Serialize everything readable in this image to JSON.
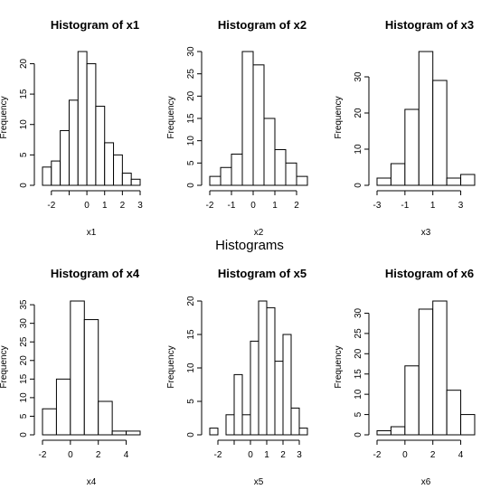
{
  "suptitle": "Histograms",
  "colors": {
    "background": "#ffffff",
    "bar_fill": "#ffffff",
    "bar_stroke": "#000000"
  },
  "chart_data": [
    {
      "type": "bar",
      "title": "Histogram of x1",
      "xlabel": "x1",
      "ylabel": "Frequency",
      "bin_edges": [
        -2.5,
        -2,
        -1.5,
        -1,
        -0.5,
        0,
        0.5,
        1,
        1.5,
        2,
        2.5,
        3
      ],
      "values": [
        3,
        4,
        9,
        14,
        22,
        20,
        13,
        7,
        5,
        2,
        1
      ],
      "xticks": [
        -2,
        -1,
        0,
        1,
        2,
        3
      ],
      "xtick_labels": [
        "-2",
        "",
        "0",
        "1",
        "2",
        "3"
      ],
      "yticks": [
        0,
        5,
        10,
        15,
        20
      ],
      "xlim": [
        -2.5,
        3
      ],
      "ylim": [
        0,
        22
      ]
    },
    {
      "type": "bar",
      "title": "Histogram of x2",
      "xlabel": "x2",
      "ylabel": "Frequency",
      "bin_edges": [
        -2,
        -1.5,
        -1,
        -0.5,
        0,
        0.5,
        1,
        1.5,
        2,
        2.5
      ],
      "values": [
        2,
        4,
        7,
        30,
        27,
        15,
        8,
        5,
        2
      ],
      "xticks": [
        -2,
        -1,
        0,
        1,
        2
      ],
      "xtick_labels": [
        "-2",
        "-1",
        "0",
        "1",
        "2"
      ],
      "yticks": [
        0,
        5,
        10,
        15,
        20,
        25,
        30
      ],
      "xlim": [
        -2,
        2.5
      ],
      "ylim": [
        0,
        30
      ]
    },
    {
      "type": "bar",
      "title": "Histogram of x3",
      "xlabel": "x3",
      "ylabel": "Frequency",
      "bin_edges": [
        -3,
        -2,
        -1,
        0,
        1,
        2,
        3,
        4
      ],
      "values": [
        2,
        6,
        21,
        37,
        29,
        2,
        3
      ],
      "xticks": [
        -3,
        -1,
        1,
        3
      ],
      "xtick_labels": [
        "-3",
        "-1",
        "1",
        "3"
      ],
      "yticks": [
        0,
        10,
        20,
        30
      ],
      "xlim": [
        -3,
        4
      ],
      "ylim": [
        0,
        37
      ]
    },
    {
      "type": "bar",
      "title": "Histogram of x4",
      "xlabel": "x4",
      "ylabel": "Frequency",
      "bin_edges": [
        -2,
        -1,
        0,
        1,
        2,
        3,
        4,
        5
      ],
      "values": [
        7,
        15,
        36,
        31,
        9,
        1,
        1
      ],
      "xticks": [
        -2,
        0,
        2,
        4
      ],
      "xtick_labels": [
        "-2",
        "0",
        "2",
        "4"
      ],
      "yticks": [
        0,
        5,
        10,
        15,
        20,
        25,
        30,
        35
      ],
      "xlim": [
        -2,
        5
      ],
      "ylim": [
        0,
        36
      ]
    },
    {
      "type": "bar",
      "title": "Histogram of x5",
      "xlabel": "x5",
      "ylabel": "Frequency",
      "bin_edges": [
        -2.5,
        -2,
        -1.5,
        -1,
        -0.5,
        0,
        0.5,
        1,
        1.5,
        2,
        2.5,
        3,
        3.5
      ],
      "values": [
        1,
        0,
        3,
        9,
        3,
        14,
        20,
        19,
        11,
        15,
        4,
        1
      ],
      "xticks": [
        -2,
        -1,
        0,
        1,
        2,
        3
      ],
      "xtick_labels": [
        "-2",
        "",
        "0",
        "1",
        "2",
        "3"
      ],
      "yticks": [
        0,
        5,
        10,
        15,
        20
      ],
      "xlim": [
        -2.5,
        3.5
      ],
      "ylim": [
        0,
        20
      ]
    },
    {
      "type": "bar",
      "title": "Histogram of x6",
      "xlabel": "x6",
      "ylabel": "Frequency",
      "bin_edges": [
        -2,
        -1,
        0,
        1,
        2,
        3,
        4,
        5
      ],
      "values": [
        1,
        2,
        17,
        31,
        33,
        11,
        5
      ],
      "xticks": [
        -2,
        0,
        2,
        4
      ],
      "xtick_labels": [
        "-2",
        "0",
        "2",
        "4"
      ],
      "yticks": [
        0,
        5,
        10,
        15,
        20,
        25,
        30
      ],
      "xlim": [
        -2,
        5
      ],
      "ylim": [
        0,
        33
      ]
    }
  ]
}
